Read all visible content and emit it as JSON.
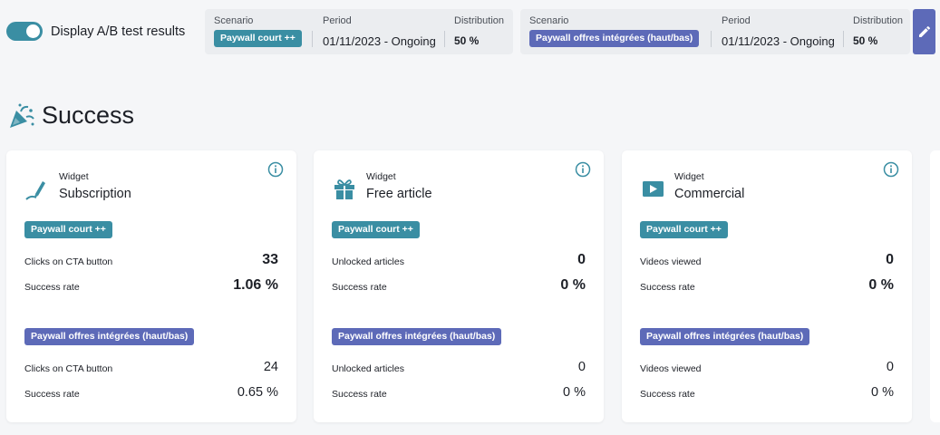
{
  "toggle": {
    "label": "Display A/B test results",
    "on": true
  },
  "scenarios": [
    {
      "scenario_caption": "Scenario",
      "scenario_badge": "Paywall court ++",
      "period_caption": "Period",
      "period_value": "01/11/2023 - Ongoing",
      "distribution_caption": "Distribution",
      "distribution_value": "50 %"
    },
    {
      "scenario_caption": "Scenario",
      "scenario_badge": "Paywall offres intégrées (haut/bas)",
      "period_caption": "Period",
      "period_value": "01/11/2023 - Ongoing",
      "distribution_caption": "Distribution",
      "distribution_value": "50 %"
    }
  ],
  "edit_icon": "pencil-icon",
  "section": {
    "title": "Success",
    "icon": "party-popper-icon"
  },
  "cards": [
    {
      "caption": "Widget",
      "name": "Subscription",
      "icon": "pen-icon",
      "group_a": {
        "badge": "Paywall court ++",
        "row1_label": "Clicks on CTA button",
        "row1_value": "33",
        "row2_label": "Success rate",
        "row2_value": "1.06 %"
      },
      "group_b": {
        "badge": "Paywall offres intégrées (haut/bas)",
        "row1_label": "Clicks on CTA button",
        "row1_value": "24",
        "row2_label": "Success rate",
        "row2_value": "0.65 %"
      }
    },
    {
      "caption": "Widget",
      "name": "Free article",
      "icon": "gift-icon",
      "group_a": {
        "badge": "Paywall court ++",
        "row1_label": "Unlocked articles",
        "row1_value": "0",
        "row2_label": "Success rate",
        "row2_value": "0 %"
      },
      "group_b": {
        "badge": "Paywall offres intégrées (haut/bas)",
        "row1_label": "Unlocked articles",
        "row1_value": "0",
        "row2_label": "Success rate",
        "row2_value": "0 %"
      }
    },
    {
      "caption": "Widget",
      "name": "Commercial",
      "icon": "video-play-icon",
      "group_a": {
        "badge": "Paywall court ++",
        "row1_label": "Videos viewed",
        "row1_value": "0",
        "row2_label": "Success rate",
        "row2_value": "0 %"
      },
      "group_b": {
        "badge": "Paywall offres intégrées (haut/bas)",
        "row1_label": "Videos viewed",
        "row1_value": "0",
        "row2_label": "Success rate",
        "row2_value": "0 %"
      }
    }
  ],
  "colors": {
    "accent_teal": "#3a8ea3",
    "accent_purple": "#5d6ab8",
    "background": "#f5f6f8"
  }
}
